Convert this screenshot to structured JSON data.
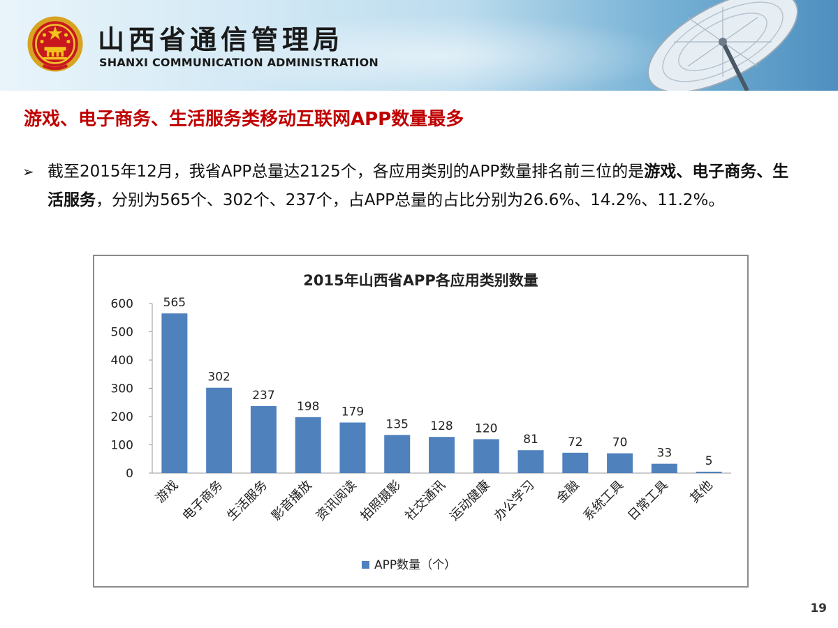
{
  "header": {
    "org_name": "山西省通信管理局",
    "org_name_en": "SHANXI COMMUNICATION ADMINISTRATION"
  },
  "headline": "游戏、电子商务、生活服务类移动互联网APP数量最多",
  "summary": {
    "bullet": "➢",
    "part1": "截至2015年12月，我省APP总量达2125个，各应用类别的APP数量排名前三位的是",
    "bold": "游戏、电子商务、生活服务",
    "part2": "，分别为565个、302个、237个，占APP总量的占比分别为26.6%、14.2%、11.2%。"
  },
  "colors": {
    "headline": "#c00000",
    "bar": "#4f81bd"
  },
  "chart_data": {
    "type": "bar",
    "title": "2015年山西省APP各应用类别数量",
    "categories": [
      "游戏",
      "电子商务",
      "生活服务",
      "影音播放",
      "资讯阅读",
      "拍照摄影",
      "社交通讯",
      "运动健康",
      "办公学习",
      "金融",
      "系统工具",
      "日常工具",
      "其他"
    ],
    "series": [
      {
        "name": "APP数量（个）",
        "values": [
          565,
          302,
          237,
          198,
          179,
          135,
          128,
          120,
          81,
          72,
          70,
          33,
          5
        ]
      }
    ],
    "yticks": [
      0,
      100,
      200,
      300,
      400,
      500,
      600
    ],
    "ylim": [
      0,
      600
    ],
    "legend": "bottom",
    "grid": false,
    "data_labels": true
  },
  "page_number": "19"
}
